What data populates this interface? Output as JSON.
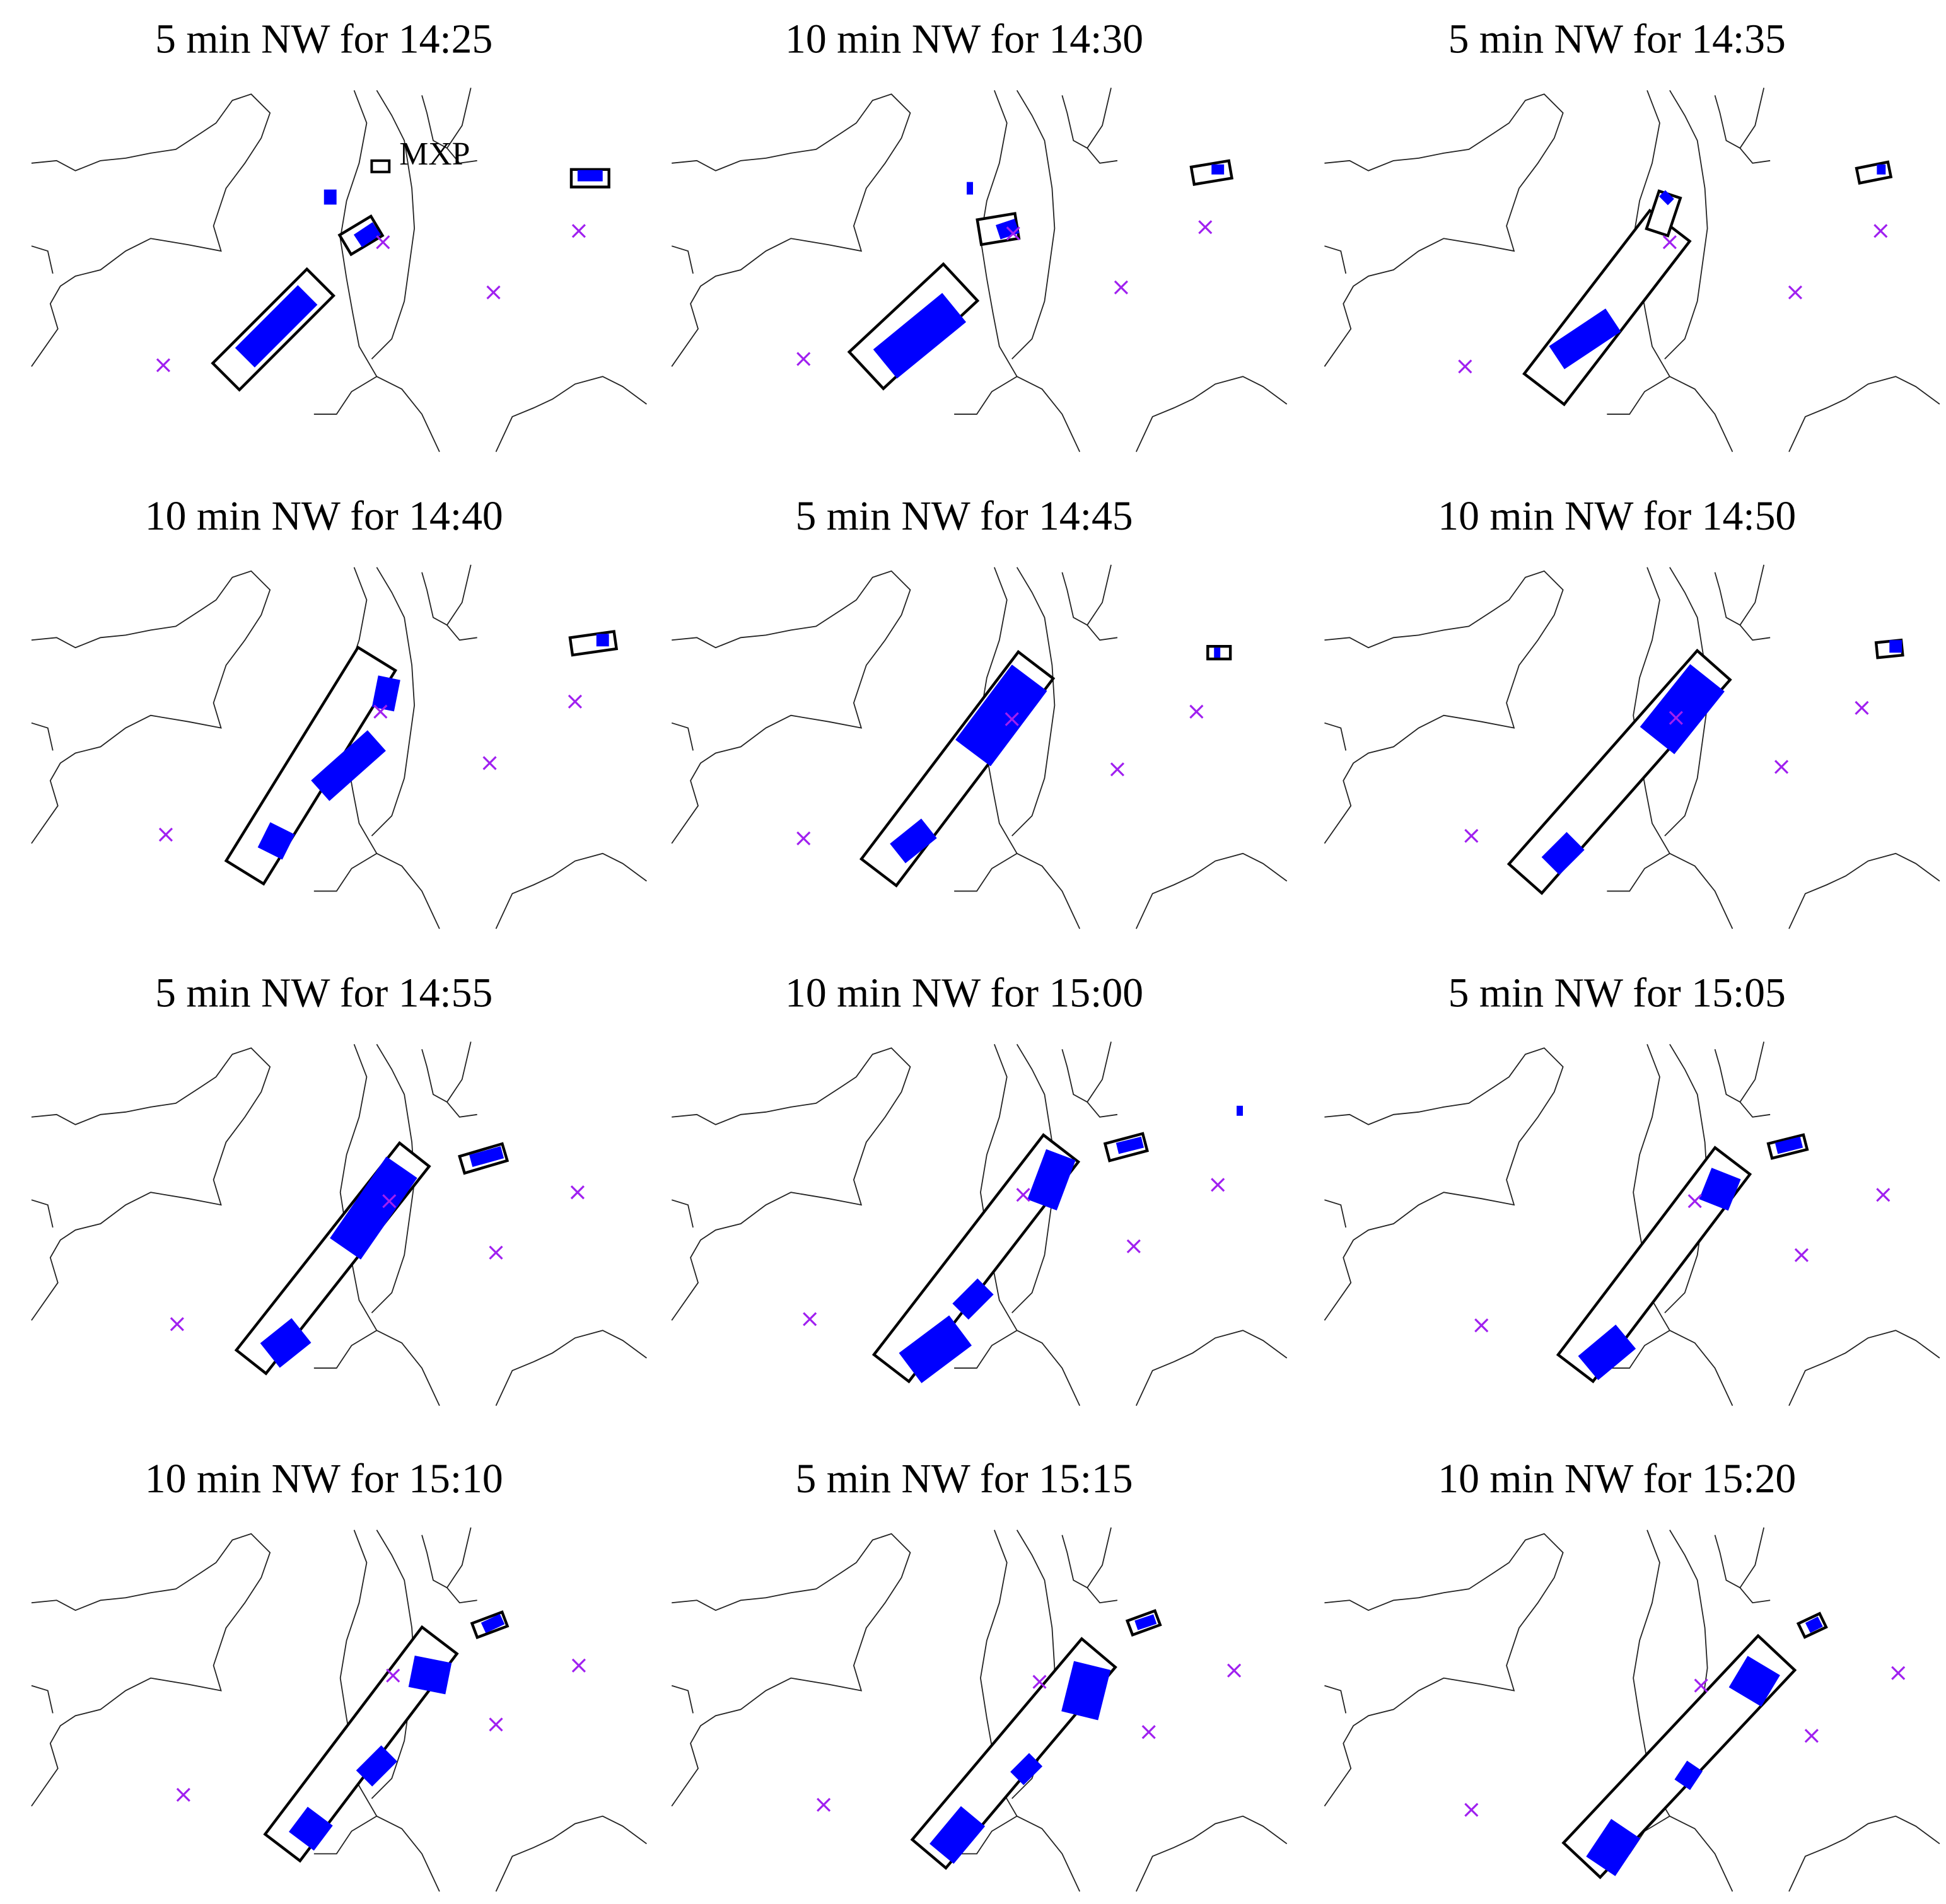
{
  "panels": [
    {
      "title": "5 min NW for 14:25"
    },
    {
      "title": "10 min NW for 14:30"
    },
    {
      "title": "5 min NW for 14:35"
    },
    {
      "title": "10 min NW for 14:40"
    },
    {
      "title": "5 min NW for 14:45"
    },
    {
      "title": "10 min NW for 14:50"
    },
    {
      "title": "5 min NW for 14:55"
    },
    {
      "title": "10 min NW for 15:00"
    },
    {
      "title": "5 min NW for 15:05"
    },
    {
      "title": "10 min NW for 15:10"
    },
    {
      "title": "5 min NW for 15:15"
    },
    {
      "title": "10 min NW for 15:20"
    }
  ],
  "labels": {
    "airport": "MXP"
  }
}
